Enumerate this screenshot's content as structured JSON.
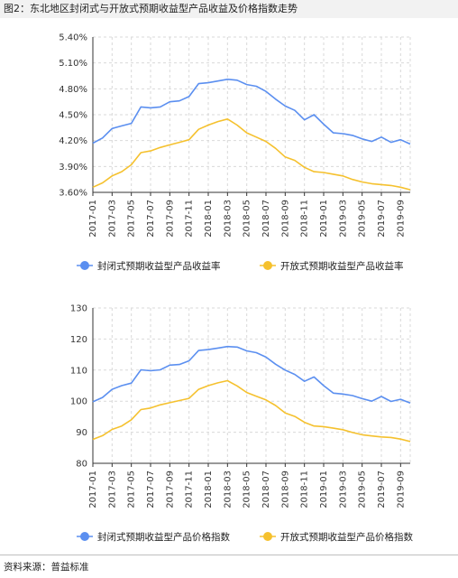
{
  "figure": {
    "title": "图2：东北地区封闭式与开放式预期收益型产品收益及价格指数走势",
    "source": "资料来源：普益标准"
  },
  "colors": {
    "blue": "#5b8ff0",
    "yellow": "#f5c12e",
    "grid": "#d9d9d9",
    "axis": "#333333",
    "title_bg": "#f2f2f2"
  },
  "chart_data": [
    {
      "type": "line",
      "x": [
        "2017-01",
        "2017-02",
        "2017-03",
        "2017-04",
        "2017-05",
        "2017-06",
        "2017-07",
        "2017-08",
        "2017-09",
        "2017-10",
        "2017-11",
        "2017-12",
        "2018-01",
        "2018-02",
        "2018-03",
        "2018-04",
        "2018-05",
        "2018-06",
        "2018-07",
        "2018-08",
        "2018-09",
        "2018-10",
        "2018-11",
        "2018-12",
        "2019-01",
        "2019-02",
        "2019-03",
        "2019-04",
        "2019-05",
        "2019-06",
        "2019-07",
        "2019-08",
        "2019-09",
        "2019-10"
      ],
      "xticks": [
        "2017-01",
        "2017-03",
        "2017-05",
        "2017-07",
        "2017-09",
        "2017-11",
        "2018-01",
        "2018-03",
        "2018-05",
        "2018-07",
        "2018-09",
        "2018-11",
        "2019-01",
        "2019-03",
        "2019-05",
        "2019-07",
        "2019-09"
      ],
      "yticks": [
        "3.60%",
        "3.90%",
        "4.20%",
        "4.50%",
        "4.80%",
        "5.10%",
        "5.40%"
      ],
      "ylim": [
        3.6,
        5.4
      ],
      "series": [
        {
          "name": "封闭式预期收益型产品收益率",
          "color": "#5b8ff0",
          "values": [
            4.17,
            4.23,
            4.34,
            4.37,
            4.4,
            4.59,
            4.58,
            4.59,
            4.65,
            4.66,
            4.71,
            4.86,
            4.87,
            4.89,
            4.91,
            4.9,
            4.85,
            4.83,
            4.77,
            4.68,
            4.6,
            4.55,
            4.44,
            4.5,
            4.39,
            4.29,
            4.28,
            4.26,
            4.22,
            4.19,
            4.24,
            4.18,
            4.21,
            4.16
          ]
        },
        {
          "name": "开放式预期收益型产品收益率",
          "color": "#f5c12e",
          "values": [
            3.66,
            3.71,
            3.79,
            3.84,
            3.92,
            4.06,
            4.08,
            4.12,
            4.15,
            4.18,
            4.21,
            4.33,
            4.38,
            4.42,
            4.45,
            4.38,
            4.29,
            4.24,
            4.19,
            4.11,
            4.01,
            3.97,
            3.89,
            3.84,
            3.83,
            3.81,
            3.79,
            3.75,
            3.72,
            3.7,
            3.69,
            3.68,
            3.66,
            3.63
          ]
        }
      ],
      "legend": "bottom-center"
    },
    {
      "type": "line",
      "x": [
        "2017-01",
        "2017-02",
        "2017-03",
        "2017-04",
        "2017-05",
        "2017-06",
        "2017-07",
        "2017-08",
        "2017-09",
        "2017-10",
        "2017-11",
        "2017-12",
        "2018-01",
        "2018-02",
        "2018-03",
        "2018-04",
        "2018-05",
        "2018-06",
        "2018-07",
        "2018-08",
        "2018-09",
        "2018-10",
        "2018-11",
        "2018-12",
        "2019-01",
        "2019-02",
        "2019-03",
        "2019-04",
        "2019-05",
        "2019-06",
        "2019-07",
        "2019-08",
        "2019-09",
        "2019-10"
      ],
      "xticks": [
        "2017-01",
        "2017-03",
        "2017-05",
        "2017-07",
        "2017-09",
        "2017-11",
        "2018-01",
        "2018-03",
        "2018-05",
        "2018-07",
        "2018-09",
        "2018-11",
        "2019-01",
        "2019-03",
        "2019-05",
        "2019-07",
        "2019-09"
      ],
      "yticks": [
        "80",
        "90",
        "100",
        "110",
        "120",
        "130"
      ],
      "ylim": [
        80,
        130
      ],
      "series": [
        {
          "name": "封闭式预期收益型产品价格指数",
          "color": "#5b8ff0",
          "values": [
            99.8,
            101.2,
            103.8,
            105.0,
            105.8,
            110.1,
            109.8,
            110.1,
            111.6,
            111.8,
            113.0,
            116.3,
            116.6,
            117.1,
            117.6,
            117.4,
            116.2,
            115.6,
            114.2,
            111.9,
            110.0,
            108.6,
            106.4,
            107.8,
            105.0,
            102.6,
            102.3,
            101.8,
            100.8,
            100.0,
            101.5,
            99.9,
            100.6,
            99.4
          ]
        },
        {
          "name": "开放式预期收益型产品价格指数",
          "color": "#f5c12e",
          "values": [
            87.7,
            88.9,
            90.9,
            92.0,
            94.0,
            97.3,
            97.8,
            98.8,
            99.5,
            100.2,
            100.9,
            103.8,
            105.0,
            105.9,
            106.6,
            104.9,
            102.8,
            101.6,
            100.4,
            98.6,
            96.2,
            95.1,
            93.2,
            92.0,
            91.8,
            91.3,
            90.8,
            89.9,
            89.2,
            88.8,
            88.5,
            88.3,
            87.8,
            87.0
          ]
        }
      ],
      "legend": "bottom-center"
    }
  ]
}
